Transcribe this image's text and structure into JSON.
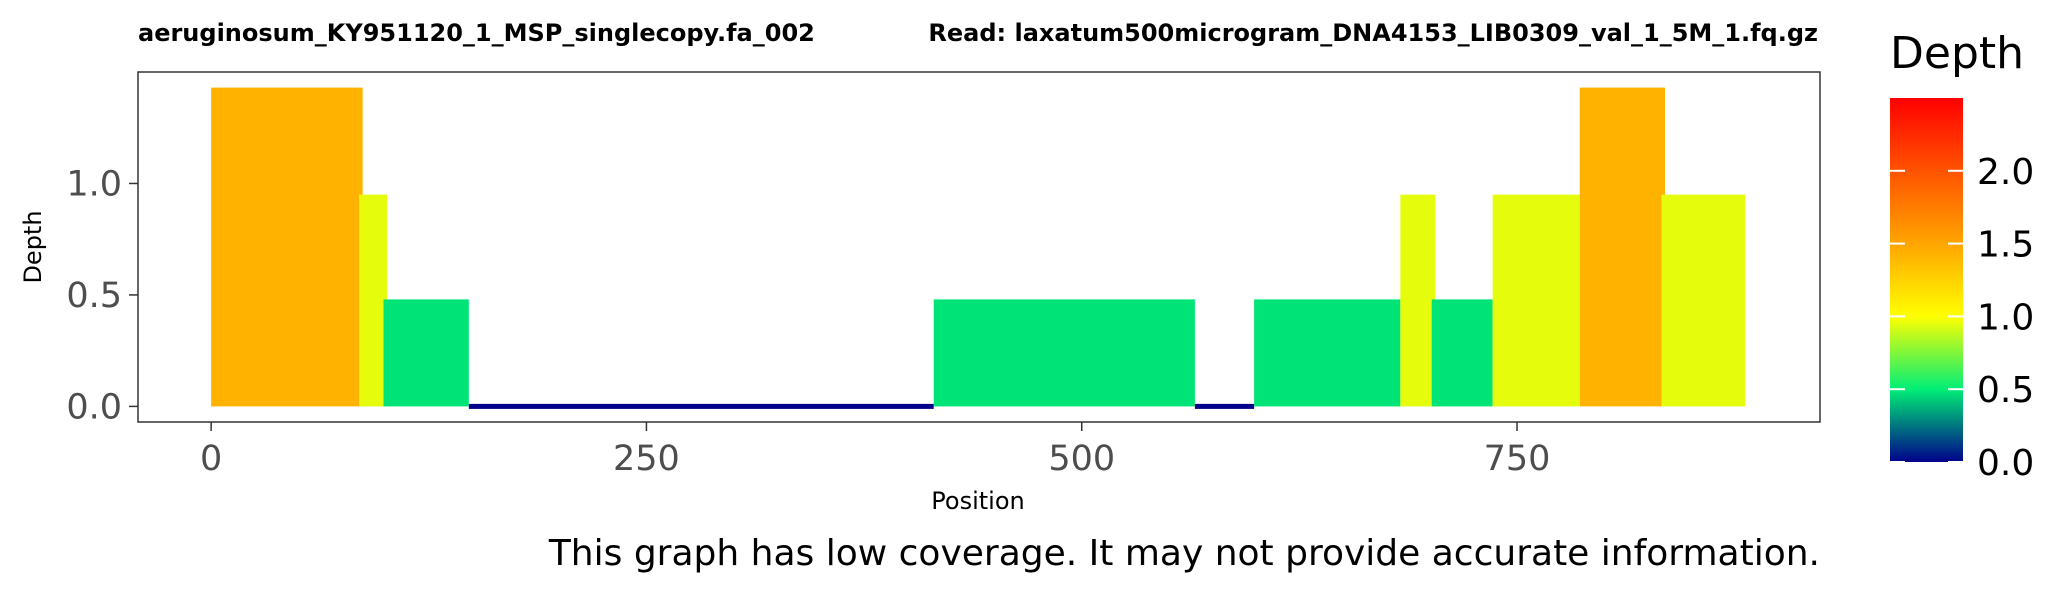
{
  "chart_data": {
    "type": "bar",
    "title": "aeruginosum_KY951120_1_MSP_singlecopy.fa_002",
    "subtitle": "Read: laxatum500microgram_DNA4153_LIB0309_val_1_5M_1.fq.gz",
    "xlabel": "Position",
    "ylabel": "Depth",
    "xlim": [
      -42,
      924
    ],
    "ylim": [
      -0.07,
      1.5
    ],
    "x_ticks": [
      0,
      250,
      500,
      750
    ],
    "x_tick_labels": [
      "0",
      "250",
      "500",
      "750"
    ],
    "y_ticks": [
      0,
      0.5,
      1.0
    ],
    "y_tick_labels": [
      "0.0",
      "0.5",
      "1.0"
    ],
    "grid": false,
    "legend": {
      "title": "Depth",
      "placement": "right",
      "type": "colorbar",
      "range": [
        0,
        2.5
      ],
      "ticks": [
        0,
        0.5,
        1.0,
        1.5,
        2.0
      ],
      "tick_labels": [
        "0.0",
        "0.5",
        "1.0",
        "1.5",
        "2.0"
      ],
      "stops": [
        {
          "value": 0.0,
          "color": "#00008B"
        },
        {
          "value": 0.5,
          "color": "#00EE76"
        },
        {
          "value": 1.0,
          "color": "#FFFF00"
        },
        {
          "value": 1.5,
          "color": "#FFA500"
        },
        {
          "value": 2.5,
          "color": "#FF0000"
        }
      ]
    },
    "segments": [
      {
        "start": 0,
        "end": 87,
        "depth": 1.43
      },
      {
        "start": 85,
        "end": 101,
        "depth": 0.95
      },
      {
        "start": 99,
        "end": 148,
        "depth": 0.48
      },
      {
        "start": 148,
        "end": 415,
        "depth": 0.0
      },
      {
        "start": 415,
        "end": 565,
        "depth": 0.48
      },
      {
        "start": 565,
        "end": 599,
        "depth": 0.0
      },
      {
        "start": 599,
        "end": 683,
        "depth": 0.48
      },
      {
        "start": 683,
        "end": 703,
        "depth": 0.95
      },
      {
        "start": 701,
        "end": 736,
        "depth": 0.48
      },
      {
        "start": 736,
        "end": 786,
        "depth": 0.95
      },
      {
        "start": 786,
        "end": 835,
        "depth": 1.43
      },
      {
        "start": 833,
        "end": 881,
        "depth": 0.95
      }
    ]
  },
  "note": "This graph has low coverage. It may not provide accurate information."
}
